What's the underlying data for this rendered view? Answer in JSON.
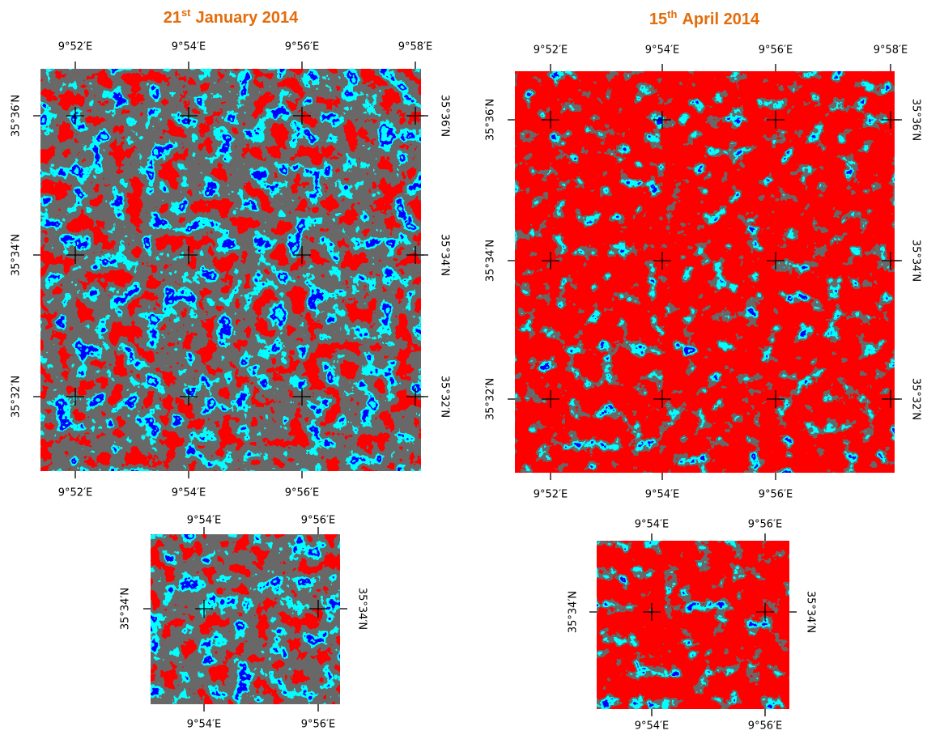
{
  "panels": [
    {
      "title": {
        "number": "21",
        "suffix": "st",
        "text": "January 2014"
      },
      "main_map": {
        "top_labels": [
          "9°52′E",
          "9°54′E",
          "9°56′E",
          "9°58′E"
        ],
        "bottom_labels": [
          "9°52′E",
          "9°54′E",
          "9°56′E"
        ],
        "left_labels": [
          "35°36′N",
          "35°34′N",
          "35°32′N"
        ],
        "right_labels": [
          "35°36′N",
          "35°34′N",
          "35°32′N"
        ]
      },
      "inset_map": {
        "top_labels": [
          "9°54′E",
          "9°56′E"
        ],
        "bottom_labels": [
          "9°54′E",
          "9°56′E"
        ],
        "left_labels": [
          "35°34′N"
        ],
        "right_labels": [
          "35°34′N"
        ]
      }
    },
    {
      "title": {
        "number": "15",
        "suffix": "th",
        "text": "April 2014"
      },
      "main_map": {
        "top_labels": [
          "9°52′E",
          "9°54′E",
          "9°56′E",
          "9°58′E"
        ],
        "bottom_labels": [
          "9°52′E",
          "9°54′E",
          "9°56′E"
        ],
        "left_labels": [
          "35°36′N",
          "35°34′N",
          "35°32′N"
        ],
        "right_labels": [
          "35°36′N",
          "35°34′N",
          "35°32′N"
        ]
      },
      "inset_map": {
        "top_labels": [
          "9°54′E",
          "9°56′E"
        ],
        "bottom_labels": [
          "9°54′E",
          "9°56′E"
        ],
        "left_labels": [
          "35°34′N"
        ],
        "right_labels": [
          "35°34′N"
        ]
      }
    }
  ]
}
